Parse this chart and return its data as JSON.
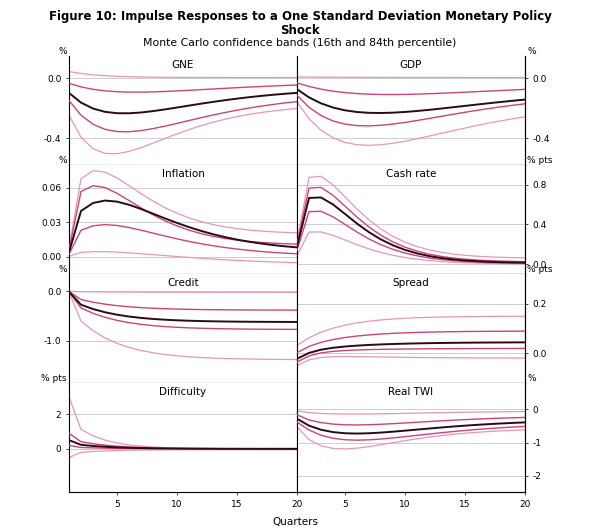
{
  "title1": "Figure 10: Impulse Responses to a One Standard Deviation Monetary Policy",
  "title2": "Shock",
  "subtitle": "Monte Carlo confidence bands (16th and 84th percentile)",
  "xlabel": "Quarters",
  "panels": [
    {
      "name": "GNE",
      "row": 0,
      "col": 0,
      "ylabel_left": "%",
      "ylim": [
        -0.58,
        0.15
      ],
      "yticks": [
        0.0,
        -0.4
      ],
      "ytick_labels": [
        "0.0",
        "-0.4"
      ]
    },
    {
      "name": "GDP",
      "row": 0,
      "col": 1,
      "ylabel_right": "%",
      "ylim": [
        -0.58,
        0.15
      ],
      "yticks": [
        0.0,
        -0.4
      ],
      "ytick_labels": [
        "0.0",
        "-0.4"
      ]
    },
    {
      "name": "Inflation",
      "row": 1,
      "col": 0,
      "ylabel_left": "%",
      "ylim": [
        -0.015,
        0.08
      ],
      "yticks": [
        0.0,
        0.03,
        0.06
      ],
      "ytick_labels": [
        "0.00",
        "0.03",
        "0.06"
      ]
    },
    {
      "name": "Cash rate",
      "row": 1,
      "col": 1,
      "ylabel_right": "% pts",
      "ylim": [
        -0.1,
        1.0
      ],
      "yticks": [
        0.0,
        0.4,
        0.8
      ],
      "ytick_labels": [
        "0.0",
        "0.4",
        "0.8"
      ]
    },
    {
      "name": "Credit",
      "row": 2,
      "col": 0,
      "ylabel_left": "%",
      "ylim": [
        -1.85,
        0.35
      ],
      "yticks": [
        0.0,
        -1.0
      ],
      "ytick_labels": [
        "0.0",
        "-1.0"
      ]
    },
    {
      "name": "Spread",
      "row": 2,
      "col": 1,
      "ylabel_right": "% pts",
      "ylim": [
        -0.12,
        0.32
      ],
      "yticks": [
        0.0,
        0.2
      ],
      "ytick_labels": [
        "0.0",
        "0.2"
      ]
    },
    {
      "name": "Difficulty",
      "row": 3,
      "col": 0,
      "ylabel_left": "% pts",
      "ylim": [
        -2.5,
        3.8
      ],
      "yticks": [
        0,
        2
      ],
      "ytick_labels": [
        "0",
        "2"
      ]
    },
    {
      "name": "Real TWI",
      "row": 3,
      "col": 1,
      "ylabel_right": "%",
      "ylim": [
        -2.5,
        0.8
      ],
      "yticks": [
        0,
        -1,
        -2
      ],
      "ytick_labels": [
        "0",
        "-1",
        "-2"
      ]
    }
  ],
  "n_quarters": 20,
  "color_median": "#2b0a14",
  "color_band_inner": "#cc4477",
  "color_band_outer": "#e896b8",
  "linewidth_median": 1.4,
  "linewidth_inner": 1.0,
  "linewidth_outer": 0.9
}
